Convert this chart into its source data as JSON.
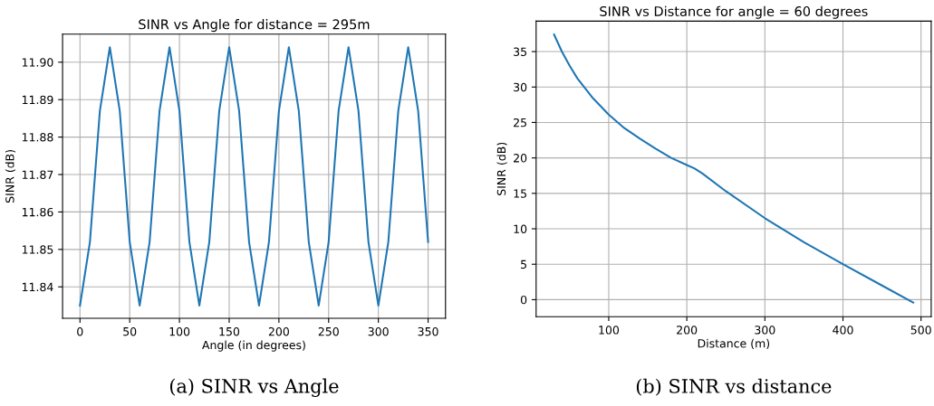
{
  "chart_data": [
    {
      "type": "line",
      "title": "SINR vs Angle for distance = 295m",
      "xlabel": "Angle (in degrees)",
      "ylabel": "SINR (dB)",
      "x": [
        0,
        10,
        20,
        30,
        40,
        50,
        60,
        70,
        80,
        90,
        100,
        110,
        120,
        130,
        140,
        150,
        160,
        170,
        180,
        190,
        200,
        210,
        220,
        230,
        240,
        250,
        260,
        270,
        280,
        290,
        300,
        310,
        320,
        330,
        340,
        350
      ],
      "series": [
        {
          "color": "#1f77b4",
          "values": [
            11.835,
            11.852,
            11.887,
            11.904,
            11.887,
            11.852,
            11.835,
            11.852,
            11.887,
            11.904,
            11.887,
            11.852,
            11.835,
            11.852,
            11.887,
            11.904,
            11.887,
            11.852,
            11.835,
            11.852,
            11.887,
            11.904,
            11.887,
            11.852,
            11.835,
            11.852,
            11.887,
            11.904,
            11.887,
            11.852,
            11.835,
            11.852,
            11.887,
            11.904,
            11.887,
            11.852
          ]
        }
      ],
      "xlim": [
        -17.5,
        367.5
      ],
      "ylim": [
        11.8316,
        11.9075
      ],
      "xticks": [
        0,
        50,
        100,
        150,
        200,
        250,
        300,
        350
      ],
      "yticks": [
        {
          "value": 11.84,
          "label": "11.84"
        },
        {
          "value": 11.85,
          "label": "11.85"
        },
        {
          "value": 11.86,
          "label": "11.86"
        },
        {
          "value": 11.87,
          "label": "11.87"
        },
        {
          "value": 11.88,
          "label": "11.88"
        },
        {
          "value": 11.89,
          "label": "11.89"
        },
        {
          "value": 11.9,
          "label": "11.90"
        }
      ],
      "grid": true,
      "annotations": [
        "(a) SINR vs Angle"
      ]
    },
    {
      "type": "line",
      "title": "SINR vs Distance for angle = 60 degrees",
      "xlabel": "Distance (m)",
      "ylabel": "SINR (dB)",
      "x": [
        30,
        40,
        50,
        60,
        70,
        80,
        100,
        120,
        140,
        160,
        180,
        200,
        210,
        220,
        250,
        300,
        350,
        400,
        450,
        490
      ],
      "series": [
        {
          "color": "#1f77b4",
          "values": [
            37.4,
            35.0,
            33.0,
            31.2,
            29.8,
            28.4,
            26.1,
            24.2,
            22.7,
            21.3,
            20.0,
            19.0,
            18.5,
            17.8,
            15.3,
            11.5,
            8.1,
            5.0,
            2.0,
            -0.4
          ]
        }
      ],
      "xlim": [
        7,
        513
      ],
      "ylim": [
        -2.4,
        39.3
      ],
      "xticks": [
        100,
        200,
        300,
        400,
        500
      ],
      "yticks": [
        0,
        5,
        10,
        15,
        20,
        25,
        30,
        35
      ],
      "grid": true,
      "annotations": [
        "(b) SINR vs distance"
      ]
    }
  ]
}
